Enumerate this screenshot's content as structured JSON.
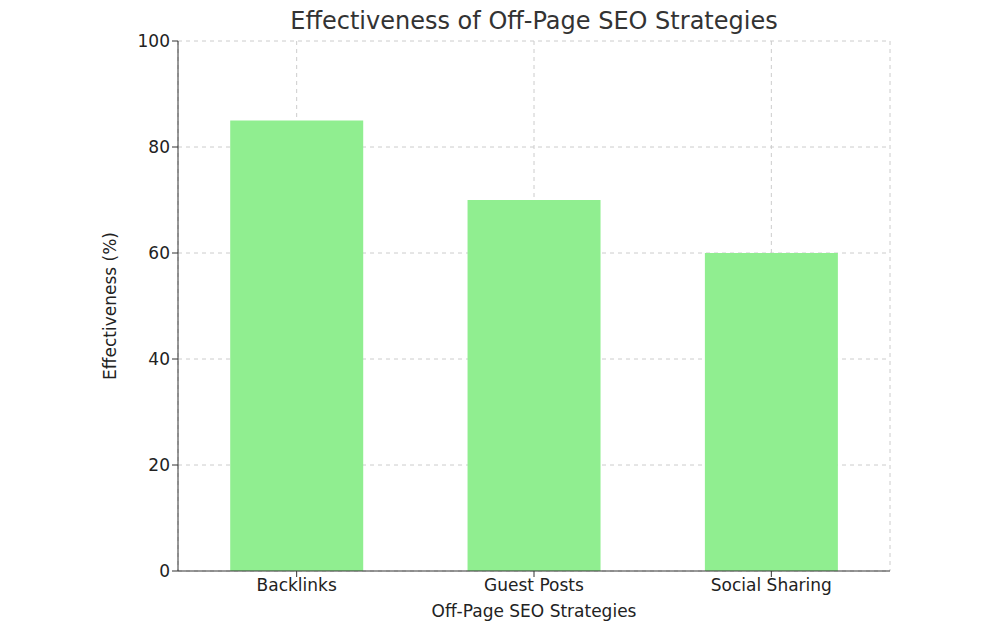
{
  "chart_data": {
    "type": "bar",
    "title": "Effectiveness of Off-Page SEO Strategies",
    "x_label": "Off-Page SEO Strategies",
    "y_label": "Effectiveness (%)",
    "categories": [
      "Backlinks",
      "Guest Posts",
      "Social Sharing"
    ],
    "values": [
      85,
      70,
      60
    ],
    "color": "#90ee90",
    "ylim": [
      0,
      100
    ],
    "yticks": [
      0,
      20,
      40,
      60,
      80,
      100
    ],
    "grid": true
  }
}
